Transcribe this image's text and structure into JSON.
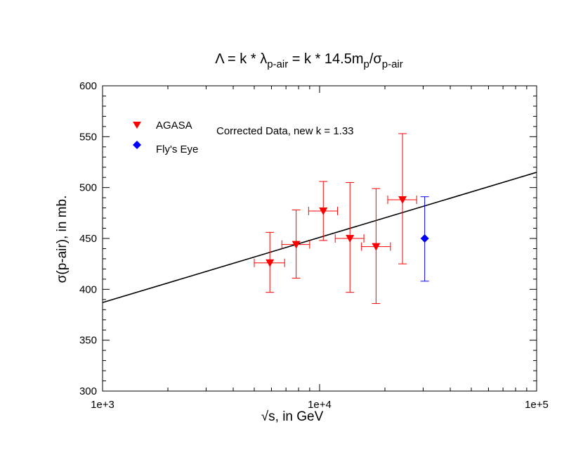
{
  "chart_data": {
    "type": "scatter",
    "title_parts": {
      "lambda": "Λ",
      "equals_k_star": " = k * ",
      "lambda_small": "λ",
      "sub_p_air_1": "p-air",
      "equals_k_star_14p5m": " = k * 14.5m",
      "sub_p": "p",
      "slash": "/",
      "sigma": "σ",
      "sub_p_air_2": "p-air"
    },
    "xlabel": "√s, in GeV",
    "ylabel": "σ(p-air), in mb.",
    "x_scale": "log",
    "xlim": [
      1000,
      100000
    ],
    "ylim": [
      300,
      600
    ],
    "x_ticks": [
      {
        "value": 1000,
        "label": "1e+3"
      },
      {
        "value": 10000,
        "label": "1e+4"
      },
      {
        "value": 100000,
        "label": "1e+5"
      }
    ],
    "y_ticks": [
      {
        "value": 300,
        "label": "300"
      },
      {
        "value": 350,
        "label": "350"
      },
      {
        "value": 400,
        "label": "400"
      },
      {
        "value": 450,
        "label": "450"
      },
      {
        "value": 500,
        "label": "500"
      },
      {
        "value": 550,
        "label": "550"
      },
      {
        "value": 600,
        "label": "600"
      }
    ],
    "annotation": "Corrected Data, new k = 1.33",
    "legend": {
      "placement": "top-left",
      "entries": [
        {
          "name": "AGASA",
          "color": "#ff0000",
          "marker": "triangle-down"
        },
        {
          "name": "Fly's Eye",
          "color": "#0000ff",
          "marker": "diamond"
        }
      ]
    },
    "fit_line": {
      "color": "#000000",
      "points": [
        {
          "x": 1000,
          "y": 387
        },
        {
          "x": 100000,
          "y": 515
        }
      ]
    },
    "series": [
      {
        "name": "AGASA",
        "color": "#ff0000",
        "marker": "triangle-down",
        "points": [
          {
            "x": 5900,
            "y": 426,
            "x_err_low": 5000,
            "x_err_high": 6900,
            "y_err_low": 397,
            "y_err_high": 456
          },
          {
            "x": 7800,
            "y": 444,
            "x_err_low": 6700,
            "x_err_high": 9000,
            "y_err_low": 411,
            "y_err_high": 478
          },
          {
            "x": 10400,
            "y": 477,
            "x_err_low": 8900,
            "x_err_high": 12100,
            "y_err_low": 448,
            "y_err_high": 506
          },
          {
            "x": 13800,
            "y": 450,
            "x_err_low": 11800,
            "x_err_high": 16000,
            "y_err_low": 397,
            "y_err_high": 505
          },
          {
            "x": 18200,
            "y": 442,
            "x_err_low": 15600,
            "x_err_high": 21200,
            "y_err_low": 386,
            "y_err_high": 499
          },
          {
            "x": 24100,
            "y": 488,
            "x_err_low": 20600,
            "x_err_high": 28000,
            "y_err_low": 425,
            "y_err_high": 553
          }
        ]
      },
      {
        "name": "Fly's Eye",
        "color": "#0000ff",
        "marker": "diamond",
        "points": [
          {
            "x": 30500,
            "y": 450,
            "y_err_low": 408,
            "y_err_high": 491
          }
        ]
      }
    ]
  }
}
